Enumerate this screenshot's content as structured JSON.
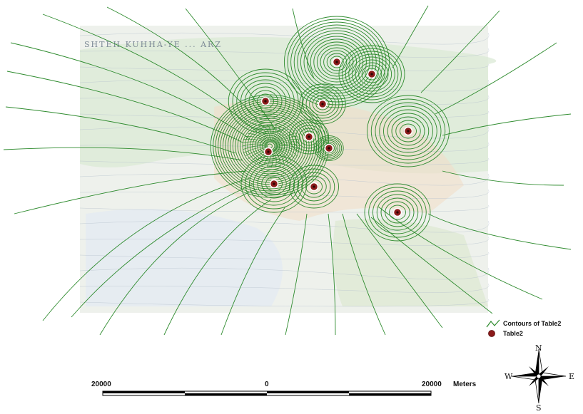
{
  "map": {
    "region_label": "SHTEH KUHHA-YE ... ARZ",
    "colors": {
      "contour": "#2e8b2e",
      "point_fill": "#8b1a1a",
      "basemap_tint": "#d8ead8",
      "basemap_warm": "#f3dcc7"
    }
  },
  "legend": {
    "contours_label": "Contours of Table2",
    "points_label": "Table2"
  },
  "scale_bar": {
    "left_label": "20000",
    "center_label": "0",
    "right_label": "20000",
    "units_label": "Meters"
  },
  "compass": {
    "north": "N",
    "south": "S",
    "east": "E",
    "west": "W",
    "icon": "north-arrow-star-icon"
  },
  "points": {
    "count": 11,
    "symbol": "circle-point-icon"
  }
}
